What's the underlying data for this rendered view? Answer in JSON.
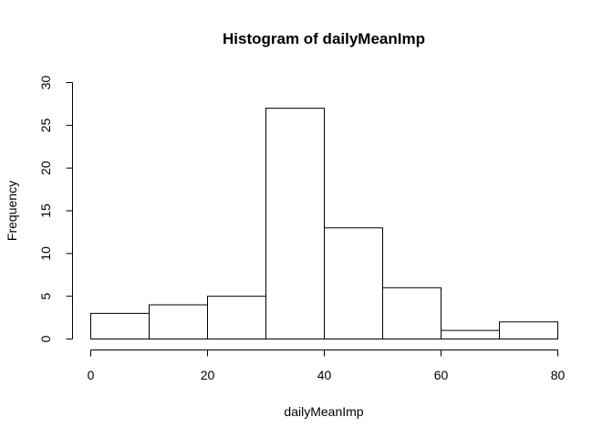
{
  "chart_data": {
    "type": "bar",
    "title": "Histogram of dailyMeanImp",
    "xlabel": "dailyMeanImp",
    "ylabel": "Frequency",
    "bins": [
      {
        "start": 0,
        "end": 10,
        "count": 3
      },
      {
        "start": 10,
        "end": 20,
        "count": 4
      },
      {
        "start": 20,
        "end": 30,
        "count": 5
      },
      {
        "start": 30,
        "end": 40,
        "count": 27
      },
      {
        "start": 40,
        "end": 50,
        "count": 13
      },
      {
        "start": 50,
        "end": 60,
        "count": 6
      },
      {
        "start": 60,
        "end": 70,
        "count": 1
      },
      {
        "start": 70,
        "end": 80,
        "count": 2
      }
    ],
    "xlim": [
      0,
      80
    ],
    "ylim": [
      0,
      30
    ],
    "x_ticks": [
      "0",
      "20",
      "40",
      "60",
      "80"
    ],
    "y_ticks": [
      "0",
      "5",
      "10",
      "15",
      "20",
      "25",
      "30"
    ],
    "grid": false,
    "legend": "none"
  }
}
